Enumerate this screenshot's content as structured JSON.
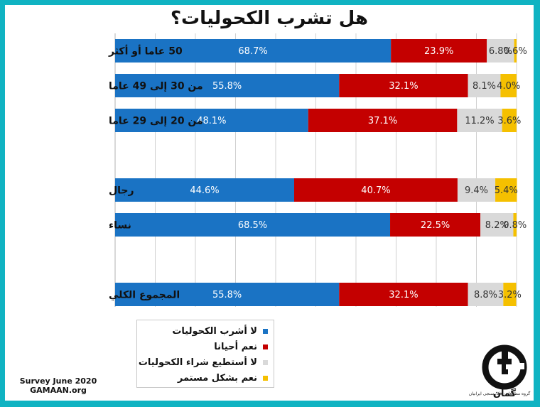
{
  "source": {
    "line1": "Survey June 2020",
    "line2": "GAMAAN.org"
  },
  "logo": {
    "name": "گمان",
    "caption": "گروه مطالعات افکارسنجی ایرانیان"
  },
  "colors": {
    "background": "#10b3c2",
    "series": [
      "#1a73c4",
      "#c40000",
      "#d9d9d9",
      "#f5c000"
    ],
    "label_text": [
      "#ffffff",
      "#ffffff",
      "#333333",
      "#333333"
    ]
  },
  "chart_data": {
    "type": "bar",
    "orientation": "horizontal",
    "stacked": true,
    "title": "هل تشرب الكحوليات؟",
    "xlabel": "",
    "ylabel": "",
    "xlim": [
      0,
      100
    ],
    "grid": true,
    "legend_position": "bottom-center",
    "categories": [
      "50 عاما أو أكثر",
      "من 30 إلى 49 عاما",
      "من 20 إلى 29 عاما",
      "رجال",
      "نساء",
      "المجموع الكلي"
    ],
    "category_groups": [
      [
        0,
        1,
        2
      ],
      [
        3,
        4
      ],
      [
        5
      ]
    ],
    "series": [
      {
        "name": "لا أشرب الكحوليات",
        "values": [
          68.7,
          55.8,
          48.1,
          44.6,
          68.5,
          55.8
        ]
      },
      {
        "name": "نعم أحيانا",
        "values": [
          23.9,
          32.1,
          37.1,
          40.7,
          22.5,
          32.1
        ]
      },
      {
        "name": "لا أستطيع شراء الكحوليات",
        "values": [
          6.8,
          8.1,
          11.2,
          9.4,
          8.2,
          8.8
        ]
      },
      {
        "name": "نعم بشكل مستمر",
        "values": [
          0.6,
          4.0,
          3.6,
          5.4,
          0.8,
          3.2
        ]
      }
    ]
  }
}
